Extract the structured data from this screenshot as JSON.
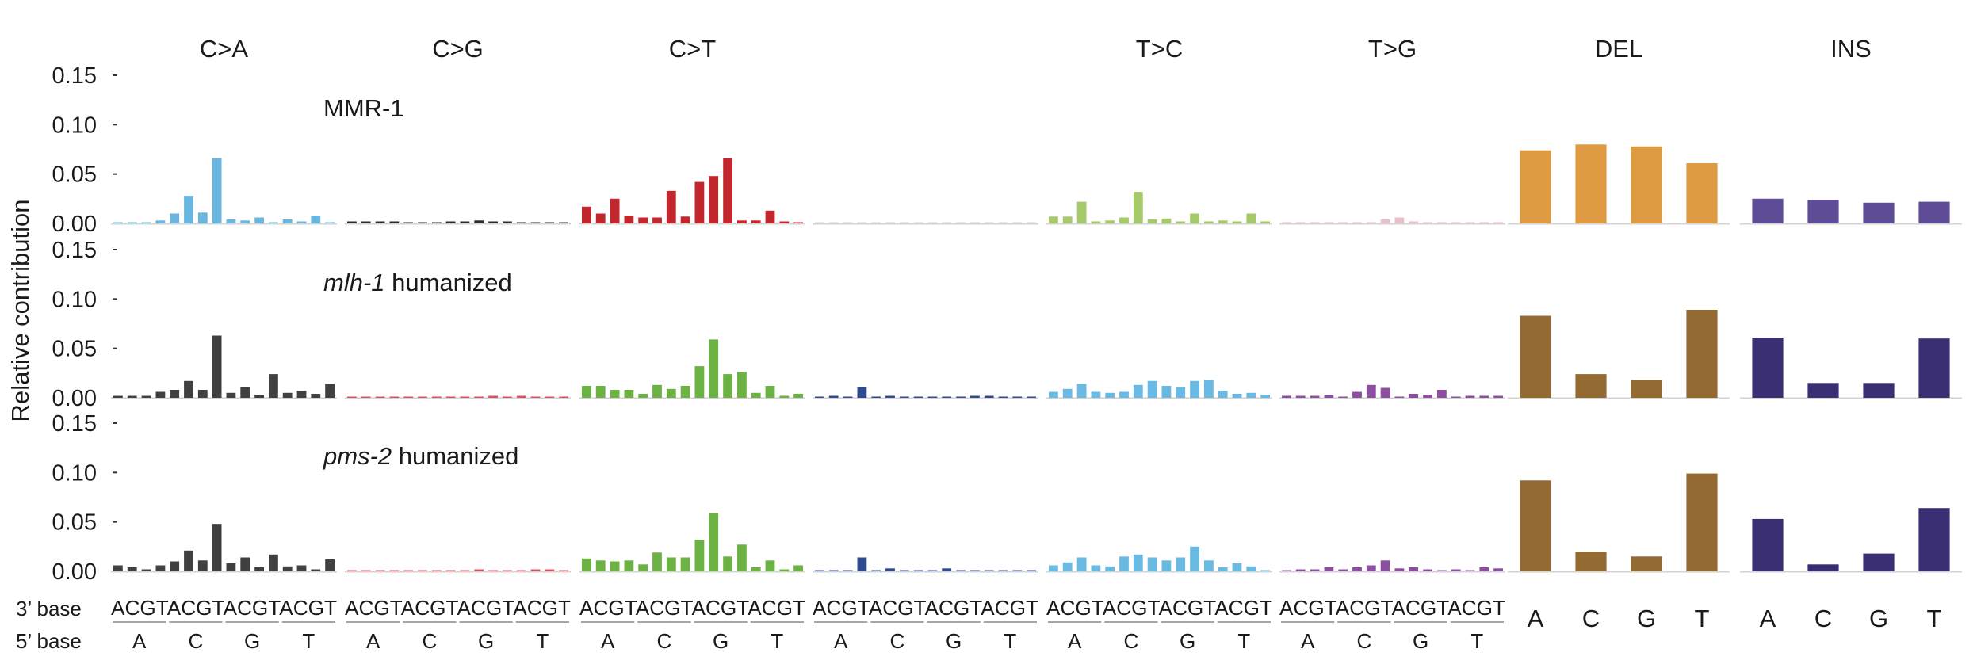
{
  "ylabel": "Relative contribution",
  "y_ticks": [
    "0.15",
    "0.10",
    "0.05",
    "0.00"
  ],
  "panel_titles": [
    "C>A",
    "C>G",
    "C>T",
    "",
    "T>C",
    "T>G",
    "DEL",
    "INS"
  ],
  "three_prime_label": "3’ base",
  "five_prime_label": "5’ base",
  "substitution_tick_text": "ACGTACGTACGTACGT",
  "five_prime_bases": [
    "A",
    "C",
    "G",
    "T"
  ],
  "indel_bases": [
    "A",
    "C",
    "G",
    "T"
  ],
  "row_labels": [
    {
      "italic": "",
      "text": "MMR-1"
    },
    {
      "italic": "mlh-1",
      "text": " humanized"
    },
    {
      "italic": "pms-2",
      "text": " humanized"
    }
  ],
  "colors": {
    "rows": [
      [
        "#6BB6DE",
        "#2B2B2B",
        "#C1272D",
        "#D4D4D4",
        "#A6C96A",
        "#E8BFC6",
        "#DE9B41",
        "#5E4C96"
      ],
      [
        "#404040",
        "#D4545E",
        "#6BB143",
        "#2F4B8D",
        "#6AB9E3",
        "#8C4F9F",
        "#936A32",
        "#3B2F74"
      ],
      [
        "#404040",
        "#D4545E",
        "#6BB143",
        "#2F4B8D",
        "#6AB9E3",
        "#8C4F9F",
        "#936A32",
        "#3B2F74"
      ]
    ],
    "baseline": "#d3d3d3"
  },
  "chart_data": {
    "type": "bar",
    "ylim": [
      0,
      0.15
    ],
    "yticks": [
      0,
      0.05,
      0.1,
      0.15
    ],
    "grid": false,
    "contexts": [
      "A_A",
      "A_C",
      "A_G",
      "A_T",
      "C_A",
      "C_C",
      "C_G",
      "C_T",
      "G_A",
      "G_C",
      "G_G",
      "G_T",
      "T_A",
      "T_C",
      "T_G",
      "T_T"
    ],
    "rows": [
      {
        "name": "MMR-1",
        "groups": [
          {
            "name": "C>A",
            "values": [
              0.001,
              0.001,
              0.001,
              0.003,
              0.01,
              0.028,
              0.011,
              0.066,
              0.004,
              0.003,
              0.006,
              0.001,
              0.004,
              0.002,
              0.008,
              0.001
            ]
          },
          {
            "name": "C>G",
            "values": [
              0.002,
              0.002,
              0.002,
              0.002,
              0.001,
              0.001,
              0.001,
              0.002,
              0.002,
              0.003,
              0.002,
              0.002,
              0.001,
              0.001,
              0.001,
              0.001
            ]
          },
          {
            "name": "C>T",
            "values": [
              0.017,
              0.01,
              0.025,
              0.008,
              0.006,
              0.006,
              0.033,
              0.007,
              0.042,
              0.048,
              0.066,
              0.003,
              0.003,
              0.013,
              0.002,
              0.0
            ]
          },
          {
            "name": "",
            "values": [
              0.0,
              0.0,
              0.0,
              0.001,
              0.0,
              0.001,
              0.0,
              0.001,
              0.0,
              0.0,
              0.0,
              0.001,
              0.0,
              0.0,
              0.0,
              0.0
            ]
          },
          {
            "name": "T>C",
            "values": [
              0.007,
              0.007,
              0.022,
              0.002,
              0.003,
              0.006,
              0.032,
              0.004,
              0.005,
              0.002,
              0.01,
              0.002,
              0.003,
              0.002,
              0.01,
              0.002
            ]
          },
          {
            "name": "T>G",
            "values": [
              0.0,
              0.0,
              0.0,
              0.0,
              0.0,
              0.0,
              0.0,
              0.004,
              0.006,
              0.002,
              0.0,
              0.0,
              0.0,
              0.0,
              0.0,
              0.0
            ]
          },
          {
            "name": "DEL",
            "values": [
              0.074,
              0.08,
              0.078,
              0.061
            ]
          },
          {
            "name": "INS",
            "values": [
              0.025,
              0.024,
              0.021,
              0.022
            ]
          }
        ]
      },
      {
        "name": "mlh-1 humanized",
        "groups": [
          {
            "name": "C>A",
            "values": [
              0.002,
              0.002,
              0.002,
              0.006,
              0.008,
              0.017,
              0.008,
              0.063,
              0.005,
              0.011,
              0.003,
              0.024,
              0.005,
              0.007,
              0.004,
              0.014
            ]
          },
          {
            "name": "C>G",
            "values": [
              0.0,
              0.001,
              0.001,
              0.0,
              0.0,
              0.001,
              0.001,
              0.0,
              0.0,
              0.001,
              0.002,
              0.001,
              0.002,
              0.0,
              0.0,
              0.0
            ]
          },
          {
            "name": "C>T",
            "values": [
              0.012,
              0.012,
              0.008,
              0.008,
              0.004,
              0.013,
              0.009,
              0.012,
              0.032,
              0.059,
              0.024,
              0.026,
              0.005,
              0.012,
              0.002,
              0.004
            ]
          },
          {
            "name": "",
            "values": [
              0.001,
              0.002,
              0.001,
              0.011,
              0.001,
              0.002,
              0.0,
              0.0,
              0.0,
              0.0,
              0.001,
              0.002,
              0.002,
              0.0,
              0.001,
              0.0
            ]
          },
          {
            "name": "T>C",
            "values": [
              0.006,
              0.009,
              0.014,
              0.006,
              0.005,
              0.006,
              0.013,
              0.017,
              0.012,
              0.011,
              0.017,
              0.018,
              0.007,
              0.004,
              0.005,
              0.003
            ]
          },
          {
            "name": "T>G",
            "values": [
              0.002,
              0.002,
              0.002,
              0.003,
              0.0,
              0.006,
              0.013,
              0.01,
              0.001,
              0.004,
              0.003,
              0.008,
              0.0,
              0.002,
              0.002,
              0.002
            ]
          },
          {
            "name": "DEL",
            "values": [
              0.083,
              0.024,
              0.018,
              0.089
            ]
          },
          {
            "name": "INS",
            "values": [
              0.061,
              0.015,
              0.015,
              0.06
            ]
          }
        ]
      },
      {
        "name": "pms-2 humanized",
        "groups": [
          {
            "name": "C>A",
            "values": [
              0.006,
              0.004,
              0.002,
              0.006,
              0.01,
              0.021,
              0.011,
              0.048,
              0.008,
              0.014,
              0.004,
              0.017,
              0.005,
              0.006,
              0.002,
              0.012
            ]
          },
          {
            "name": "C>G",
            "values": [
              0.001,
              0.001,
              0.001,
              0.001,
              0.001,
              0.001,
              0.001,
              0.001,
              0.001,
              0.002,
              0.001,
              0.001,
              0.001,
              0.002,
              0.002,
              0.001
            ]
          },
          {
            "name": "C>T",
            "values": [
              0.013,
              0.011,
              0.01,
              0.011,
              0.007,
              0.019,
              0.014,
              0.014,
              0.032,
              0.059,
              0.015,
              0.027,
              0.004,
              0.011,
              0.002,
              0.006
            ]
          },
          {
            "name": "",
            "values": [
              0.001,
              0.001,
              0.001,
              0.014,
              0.001,
              0.003,
              0.0,
              0.0,
              0.0,
              0.003,
              0.001,
              0.001,
              0.001,
              0.0,
              0.0,
              0.001
            ]
          },
          {
            "name": "T>C",
            "values": [
              0.006,
              0.009,
              0.014,
              0.006,
              0.005,
              0.015,
              0.017,
              0.014,
              0.011,
              0.014,
              0.025,
              0.011,
              0.004,
              0.008,
              0.005,
              0.001
            ]
          },
          {
            "name": "T>G",
            "values": [
              0.001,
              0.002,
              0.002,
              0.004,
              0.002,
              0.004,
              0.006,
              0.011,
              0.003,
              0.004,
              0.002,
              0.001,
              0.002,
              0.0,
              0.004,
              0.003
            ]
          },
          {
            "name": "DEL",
            "values": [
              0.092,
              0.02,
              0.015,
              0.099
            ]
          },
          {
            "name": "INS",
            "values": [
              0.053,
              0.007,
              0.018,
              0.064
            ]
          }
        ]
      }
    ]
  }
}
